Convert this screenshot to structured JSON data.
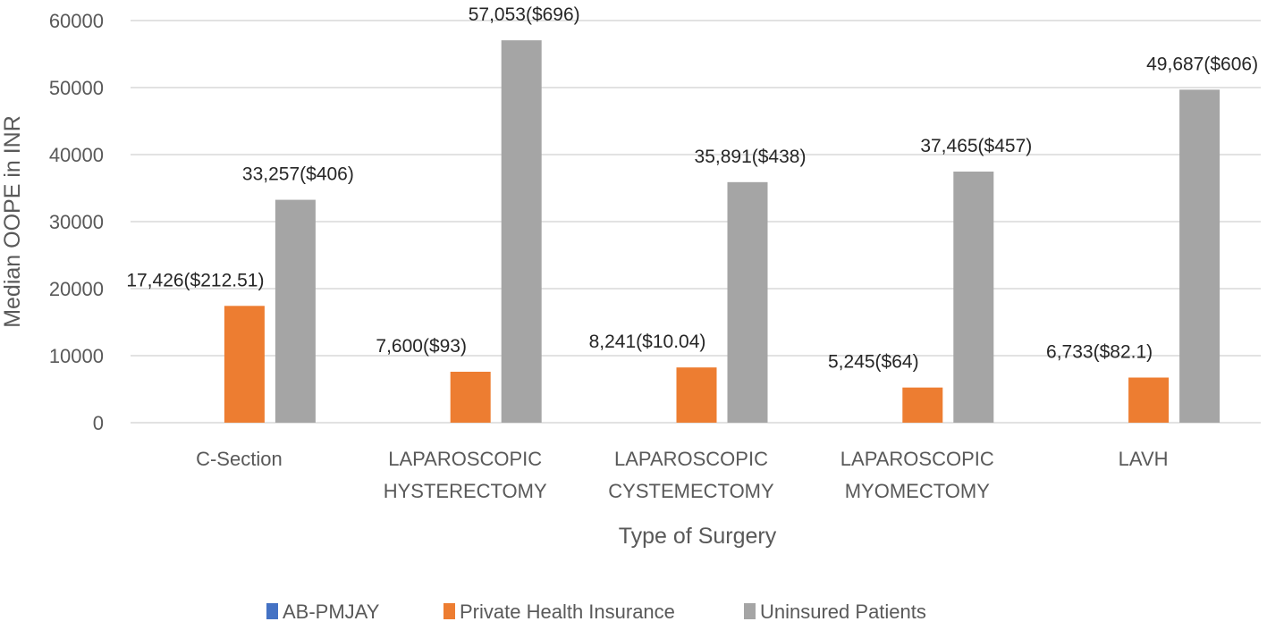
{
  "chart_data": {
    "type": "bar",
    "title": "",
    "xlabel": "Type of Surgery",
    "ylabel": "Median OOPE in INR",
    "ylim": [
      0,
      60000
    ],
    "yticks": [
      0,
      10000,
      20000,
      30000,
      40000,
      50000,
      60000
    ],
    "grid": true,
    "legend_position": "bottom",
    "categories": [
      [
        "C-Section"
      ],
      [
        "LAPAROSCOPIC",
        "HYSTERECTOMY"
      ],
      [
        "LAPAROSCOPIC",
        "CYSTEMECTOMY"
      ],
      [
        "LAPAROSCOPIC",
        "MYOMECTOMY"
      ],
      [
        "LAVH"
      ]
    ],
    "series": [
      {
        "name": "AB-PMJAY",
        "color": "#4472C4",
        "values": [
          0,
          0,
          0,
          0,
          0
        ],
        "labels": [
          "",
          "",
          "",
          "",
          ""
        ]
      },
      {
        "name": "Private Health Insurance",
        "color": "#ED7D31",
        "values": [
          17426,
          7600,
          8241,
          5245,
          6733
        ],
        "labels": [
          "17,426($212.51)",
          "7,600($93)",
          "8,241($10.04)",
          "5,245($64)",
          "6,733($82.1)"
        ]
      },
      {
        "name": "Uninsured Patients",
        "color": "#A5A5A5",
        "values": [
          33257,
          57053,
          35891,
          37465,
          49687
        ],
        "labels": [
          "33,257($406)",
          "57,053($696)",
          "35,891($438)",
          "37,465($457)",
          "49,687($606)"
        ]
      }
    ]
  }
}
